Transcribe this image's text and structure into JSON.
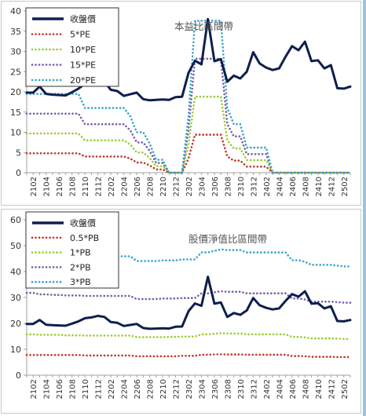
{
  "chart_data": [
    {
      "type": "line",
      "title": "本益比區間帶",
      "ylim": [
        0,
        40
      ],
      "yticks": [
        0,
        5,
        10,
        15,
        20,
        25,
        30,
        35,
        40
      ],
      "x": [
        "2101",
        "2102",
        "2103",
        "2104",
        "2105",
        "2106",
        "2107",
        "2108",
        "2109",
        "2110",
        "2111",
        "2112",
        "2201",
        "2202",
        "2203",
        "2204",
        "2205",
        "2206",
        "2207",
        "2208",
        "2209",
        "2210",
        "2211",
        "2212",
        "2301",
        "2302",
        "2303",
        "2304",
        "2305",
        "2306",
        "2307",
        "2308",
        "2309",
        "2310",
        "2311",
        "2312",
        "2401",
        "2402",
        "2403",
        "2404",
        "2405",
        "2406",
        "2407",
        "2408",
        "2409",
        "2410",
        "2411",
        "2412",
        "2501",
        "2502",
        "2503"
      ],
      "xtick_labels": [
        "2102",
        "2104",
        "2106",
        "2108",
        "2110",
        "2112",
        "2202",
        "2204",
        "2206",
        "2208",
        "2210",
        "2212",
        "2302",
        "2304",
        "2306",
        "2308",
        "2310",
        "2312",
        "2402",
        "2404",
        "2406",
        "2408",
        "2410",
        "2412",
        "2502"
      ],
      "legend_position": "top-left",
      "series": [
        {
          "name": "收盤價",
          "color": "#0d1f4d",
          "style": "solid",
          "values": [
            19.8,
            19.8,
            21.3,
            19.5,
            19.3,
            19.2,
            19.1,
            19.9,
            20.8,
            22.0,
            22.3,
            22.9,
            22.5,
            20.5,
            20.2,
            19.0,
            19.4,
            19.8,
            18.2,
            17.9,
            18.0,
            18.1,
            18.0,
            18.7,
            18.8,
            24.7,
            27.7,
            26.8,
            38.0,
            27.6,
            28.1,
            22.5,
            24.0,
            23.3,
            25.0,
            29.8,
            27.0,
            26.0,
            25.4,
            25.8,
            28.7,
            31.3,
            30.3,
            32.4,
            27.6,
            27.8,
            25.8,
            26.6,
            20.9,
            20.8,
            21.3
          ]
        },
        {
          "name": "5*PE",
          "color": "#c0392b",
          "style": "dotted",
          "values": [
            4.8,
            4.8,
            4.8,
            4.8,
            4.8,
            4.8,
            4.8,
            4.8,
            4.8,
            4.0,
            4.0,
            4.0,
            4.0,
            4.0,
            4.0,
            4.0,
            3.5,
            2.5,
            2.5,
            1.8,
            0.8,
            0.8,
            0,
            0,
            0,
            3.5,
            9.4,
            9.4,
            9.4,
            9.4,
            9.4,
            4.0,
            3.0,
            3.0,
            1.5,
            1.5,
            1.5,
            1.5,
            0,
            0,
            0,
            0,
            0,
            0,
            0,
            0,
            0,
            0,
            0,
            0,
            0
          ]
        },
        {
          "name": "10*PE",
          "color": "#9acd32",
          "style": "dotted",
          "values": [
            9.7,
            9.7,
            9.7,
            9.7,
            9.7,
            9.7,
            9.7,
            9.7,
            9.7,
            8.0,
            8.0,
            8.0,
            8.0,
            8.0,
            8.0,
            8.0,
            7.0,
            5.0,
            5.0,
            3.6,
            1.6,
            1.6,
            0,
            0,
            0,
            7.0,
            18.8,
            18.8,
            18.8,
            18.8,
            18.8,
            8.0,
            6.0,
            6.0,
            3.1,
            3.1,
            3.1,
            3.1,
            0,
            0,
            0,
            0,
            0,
            0,
            0,
            0,
            0,
            0,
            0,
            0,
            0
          ]
        },
        {
          "name": "15*PE",
          "color": "#7b5ea7",
          "style": "dotted",
          "values": [
            14.6,
            14.6,
            14.6,
            14.6,
            14.6,
            14.6,
            14.6,
            14.6,
            14.6,
            12.0,
            12.0,
            12.0,
            12.0,
            12.0,
            12.0,
            12.0,
            10.5,
            7.5,
            7.5,
            5.4,
            2.4,
            2.4,
            0,
            0,
            0,
            10.5,
            28.2,
            28.2,
            28.2,
            28.2,
            28.2,
            12.0,
            9.0,
            9.0,
            4.6,
            4.6,
            4.6,
            4.6,
            0,
            0,
            0,
            0,
            0,
            0,
            0,
            0,
            0,
            0,
            0,
            0,
            0
          ]
        },
        {
          "name": "20*PE",
          "color": "#3aa5c8",
          "style": "dotted",
          "values": [
            19.5,
            19.5,
            19.5,
            19.5,
            19.5,
            19.5,
            19.5,
            19.5,
            19.5,
            16.0,
            16.0,
            16.0,
            16.0,
            16.0,
            16.0,
            16.0,
            14.0,
            10.0,
            10.0,
            7.2,
            3.2,
            3.2,
            0,
            0,
            0,
            14.0,
            37.6,
            37.6,
            37.6,
            37.6,
            37.6,
            16.0,
            12.0,
            12.0,
            6.2,
            6.2,
            6.2,
            6.2,
            0,
            0,
            0,
            0,
            0,
            0,
            0,
            0,
            0,
            0,
            0,
            0,
            0
          ]
        }
      ]
    },
    {
      "type": "line",
      "title": "股價淨值比區間帶",
      "ylim": [
        0,
        60
      ],
      "yticks": [
        0,
        10,
        20,
        30,
        40,
        50,
        60
      ],
      "x": [
        "2101",
        "2102",
        "2103",
        "2104",
        "2105",
        "2106",
        "2107",
        "2108",
        "2109",
        "2110",
        "2111",
        "2112",
        "2201",
        "2202",
        "2203",
        "2204",
        "2205",
        "2206",
        "2207",
        "2208",
        "2209",
        "2210",
        "2211",
        "2212",
        "2301",
        "2302",
        "2303",
        "2304",
        "2305",
        "2306",
        "2307",
        "2308",
        "2309",
        "2310",
        "2311",
        "2312",
        "2401",
        "2402",
        "2403",
        "2404",
        "2405",
        "2406",
        "2407",
        "2408",
        "2409",
        "2410",
        "2411",
        "2412",
        "2501",
        "2502",
        "2503"
      ],
      "xtick_labels": [
        "2102",
        "2104",
        "2106",
        "2108",
        "2110",
        "2112",
        "2202",
        "2204",
        "2206",
        "2208",
        "2210",
        "2212",
        "2302",
        "2304",
        "2306",
        "2308",
        "2310",
        "2312",
        "2402",
        "2404",
        "2406",
        "2408",
        "2410",
        "2412",
        "2502"
      ],
      "legend_position": "top-left",
      "series": [
        {
          "name": "收盤價",
          "color": "#0d1f4d",
          "style": "solid",
          "values": [
            19.8,
            19.8,
            21.3,
            19.5,
            19.3,
            19.2,
            19.1,
            19.9,
            20.8,
            22.0,
            22.3,
            22.9,
            22.5,
            20.5,
            20.2,
            19.0,
            19.4,
            19.8,
            18.2,
            17.9,
            18.0,
            18.1,
            18.0,
            18.7,
            18.8,
            24.7,
            27.7,
            26.8,
            38.0,
            27.6,
            28.1,
            22.5,
            24.0,
            23.3,
            25.0,
            29.8,
            27.0,
            26.0,
            25.4,
            25.8,
            28.7,
            31.3,
            30.3,
            32.4,
            27.6,
            27.8,
            25.8,
            26.6,
            20.9,
            20.8,
            21.3
          ]
        },
        {
          "name": "0.5*PB",
          "color": "#c0392b",
          "style": "dotted",
          "values": [
            7.8,
            7.8,
            7.8,
            7.8,
            7.8,
            7.8,
            7.8,
            7.8,
            7.8,
            7.6,
            7.6,
            7.6,
            7.6,
            7.6,
            7.6,
            7.6,
            7.6,
            7.3,
            7.3,
            7.3,
            7.3,
            7.3,
            7.3,
            7.3,
            7.5,
            7.5,
            7.5,
            7.9,
            7.9,
            8.0,
            8.1,
            8.0,
            8.0,
            8.0,
            7.9,
            7.9,
            7.9,
            7.9,
            7.9,
            7.9,
            7.9,
            7.4,
            7.4,
            7.3,
            7.1,
            7.1,
            7.1,
            7.1,
            7.0,
            7.0,
            7.0
          ]
        },
        {
          "name": "1*PB",
          "color": "#9acd32",
          "style": "dotted",
          "values": [
            15.8,
            15.8,
            15.6,
            15.6,
            15.6,
            15.6,
            15.4,
            15.4,
            15.4,
            15.3,
            15.3,
            15.3,
            15.3,
            15.3,
            15.3,
            15.3,
            15.3,
            14.7,
            14.7,
            14.7,
            14.7,
            14.7,
            14.8,
            14.8,
            14.9,
            14.9,
            14.9,
            15.8,
            15.8,
            16.0,
            16.2,
            16.1,
            16.1,
            16.1,
            15.8,
            15.8,
            15.8,
            15.8,
            15.8,
            15.8,
            15.8,
            14.8,
            14.8,
            14.6,
            14.2,
            14.2,
            14.2,
            14.2,
            14.1,
            14.0,
            14.0
          ]
        },
        {
          "name": "2*PB",
          "color": "#7b5ea7",
          "style": "dotted",
          "values": [
            31.8,
            31.8,
            31.2,
            31.2,
            31.0,
            31.0,
            30.8,
            30.8,
            30.8,
            30.6,
            30.6,
            30.6,
            30.6,
            30.6,
            30.6,
            30.6,
            30.6,
            29.4,
            29.4,
            29.4,
            29.4,
            29.6,
            29.6,
            29.6,
            29.8,
            29.8,
            29.8,
            31.6,
            31.6,
            32.0,
            32.4,
            32.2,
            32.2,
            32.2,
            31.6,
            31.6,
            31.6,
            31.6,
            31.6,
            31.6,
            31.6,
            29.6,
            29.6,
            29.2,
            28.4,
            28.4,
            28.4,
            28.4,
            28.2,
            28.0,
            28.0
          ]
        },
        {
          "name": "3*PB",
          "color": "#3aa5c8",
          "style": "dotted",
          "values": [
            47.6,
            47.6,
            46.8,
            46.8,
            46.5,
            46.5,
            46.2,
            46.2,
            46.2,
            45.9,
            45.9,
            45.9,
            45.9,
            45.9,
            45.9,
            45.9,
            45.9,
            44.1,
            44.1,
            44.1,
            44.1,
            44.3,
            44.3,
            44.3,
            44.7,
            44.7,
            44.7,
            47.4,
            47.4,
            48.0,
            48.6,
            48.3,
            48.3,
            48.3,
            47.4,
            47.4,
            47.4,
            47.4,
            47.4,
            47.4,
            47.4,
            44.4,
            44.4,
            43.8,
            42.6,
            42.6,
            42.6,
            42.6,
            42.3,
            42.0,
            42.0
          ]
        }
      ]
    }
  ]
}
